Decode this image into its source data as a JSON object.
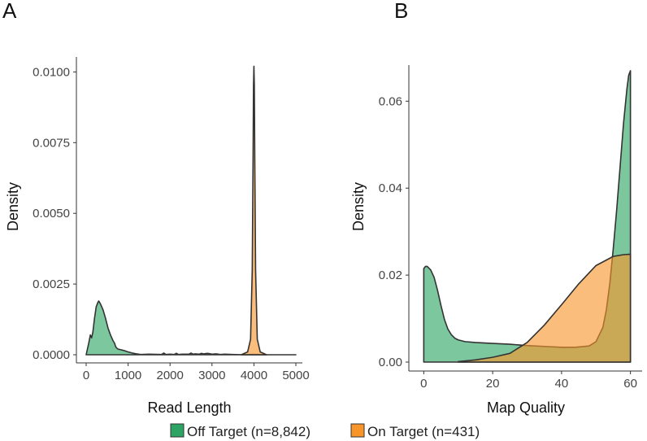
{
  "figure": {
    "legend": [
      {
        "label": "Off Target (n=8,842)",
        "color": "#2ca463"
      },
      {
        "label": "On Target (n=431)",
        "color": "#f8952a"
      }
    ]
  },
  "chart_data": [
    {
      "type": "area",
      "panel_label": "A",
      "xlabel": "Read Length",
      "ylabel": "Density",
      "xlim": [
        0,
        5000
      ],
      "ylim": [
        0,
        0.0103
      ],
      "xticks": [
        0,
        1000,
        2000,
        3000,
        4000,
        5000
      ],
      "xtick_labels": [
        "0",
        "1000",
        "2000",
        "3000",
        "4000",
        "5000"
      ],
      "yticks": [
        0,
        0.0025,
        0.005,
        0.0075,
        0.01
      ],
      "ytick_labels": [
        "0.0000",
        "0.0025",
        "0.0050",
        "0.0075",
        "0.0100"
      ],
      "grid": false,
      "series": [
        {
          "name": "Off Target",
          "color": "#2ca463",
          "x": [
            0,
            60,
            100,
            130,
            160,
            200,
            240,
            280,
            300,
            340,
            400,
            460,
            520,
            580,
            640,
            680,
            700,
            720,
            760,
            820,
            900,
            1000,
            1100,
            1200,
            1300,
            1500,
            1800,
            1850,
            1900,
            2000,
            2100,
            2150,
            2200,
            2300,
            2450,
            2500,
            2550,
            2600,
            2700,
            2750,
            2800,
            2900,
            3000,
            3100,
            3200,
            3300,
            3500,
            3800,
            3900,
            4000,
            4100,
            4200,
            5000
          ],
          "y": [
            0,
            0.0004,
            0.0007,
            0.0006,
            0.0008,
            0.0013,
            0.0017,
            0.00185,
            0.0019,
            0.0018,
            0.0016,
            0.0013,
            0.00095,
            0.0007,
            0.0005,
            0.0004,
            0.0003,
            0.00025,
            0.0002,
            0.00018,
            0.00015,
            0.0001,
            6e-05,
            3e-05,
            1e-05,
            2e-05,
            1e-05,
            6e-05,
            1e-05,
            2e-05,
            1e-05,
            5e-05,
            1e-05,
            2e-05,
            2e-05,
            6e-05,
            2e-05,
            3e-05,
            2e-05,
            5e-05,
            3e-05,
            5e-05,
            2e-05,
            3e-05,
            1e-05,
            2e-05,
            1e-05,
            0,
            1e-05,
            1e-05,
            1e-05,
            0,
            0
          ]
        },
        {
          "name": "On Target",
          "color": "#f8952a",
          "x": [
            3700,
            3850,
            3920,
            3960,
            3980,
            3990,
            4000,
            4010,
            4020,
            4040,
            4080,
            4150,
            4300
          ],
          "y": [
            0,
            0.0001,
            0.00055,
            0.003,
            0.007,
            0.0095,
            0.0102,
            0.0095,
            0.007,
            0.003,
            0.00055,
            0.0001,
            0
          ]
        }
      ]
    },
    {
      "type": "area",
      "panel_label": "B",
      "xlabel": "Map Quality",
      "ylabel": "Density",
      "xlim": [
        -1.5,
        61.5
      ],
      "ylim": [
        0,
        0.0668
      ],
      "xticks": [
        0,
        20,
        40,
        60
      ],
      "xtick_labels": [
        "0",
        "20",
        "40",
        "60"
      ],
      "yticks": [
        0,
        0.02,
        0.04,
        0.06
      ],
      "ytick_labels": [
        "0.00",
        "0.02",
        "0.04",
        "0.06"
      ],
      "grid": false,
      "series": [
        {
          "name": "Off Target",
          "color": "#2ca463",
          "x": [
            0,
            0.5,
            1,
            2,
            3,
            4,
            5,
            6,
            7,
            8,
            9,
            10,
            12,
            15,
            20,
            25,
            30,
            35,
            40,
            44,
            48,
            50,
            52,
            53,
            54,
            55,
            56,
            57,
            58,
            59,
            59.5,
            60
          ],
          "y": [
            0.0215,
            0.022,
            0.022,
            0.0212,
            0.0195,
            0.0165,
            0.013,
            0.0098,
            0.0076,
            0.0063,
            0.0055,
            0.0051,
            0.0047,
            0.0045,
            0.0043,
            0.0041,
            0.0038,
            0.0036,
            0.0034,
            0.0034,
            0.0037,
            0.0047,
            0.008,
            0.012,
            0.018,
            0.026,
            0.035,
            0.045,
            0.055,
            0.063,
            0.066,
            0.067
          ]
        },
        {
          "name": "On Target",
          "color": "#f8952a",
          "x": [
            10,
            15,
            20,
            25,
            30,
            35,
            40,
            45,
            50,
            55,
            58,
            60
          ],
          "y": [
            0.0001,
            0.0005,
            0.0011,
            0.002,
            0.0045,
            0.0085,
            0.0132,
            0.018,
            0.0222,
            0.0243,
            0.0247,
            0.0248
          ]
        }
      ]
    }
  ]
}
